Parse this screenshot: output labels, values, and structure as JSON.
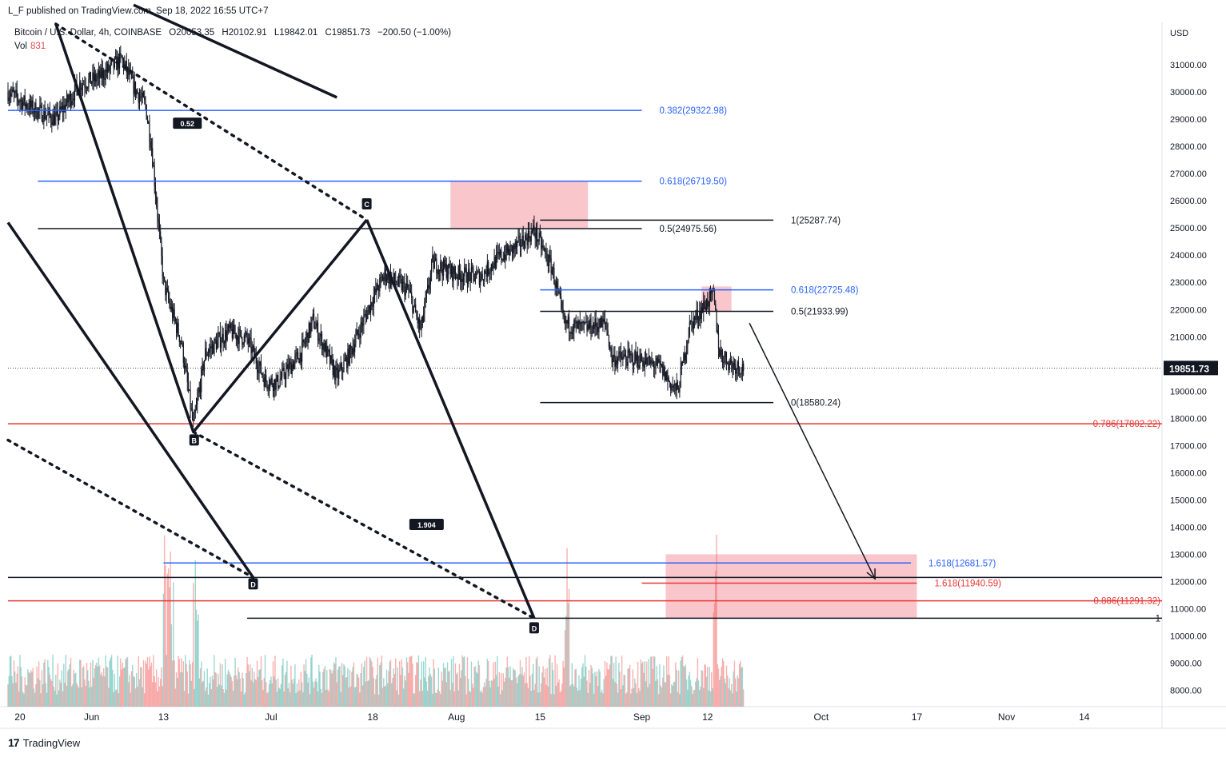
{
  "header": {
    "published": "L_F published on TradingView.com, Sep 18, 2022 16:55 UTC+7",
    "symbol": "Bitcoin / U.S. Dollar, 4h, COINBASE",
    "open": "O20053.35",
    "high": "H20102.91",
    "low": "L19842.01",
    "close": "C19851.73",
    "change": "−200.50 (−1.00%)",
    "vol_label": "Vol",
    "vol_value": "831"
  },
  "footer": {
    "brand": "TradingView",
    "logo": "17"
  },
  "colors": {
    "up": "#26a69a",
    "down": "#ef5350",
    "candle": "#131722",
    "fib_blue": "#2962ff",
    "fib_red": "#e53935",
    "zone": "#f8bcc2",
    "grid": "#f0f3fa"
  },
  "chart_data": {
    "type": "candlestick",
    "symbol": "Bitcoin / U.S. Dollar",
    "interval": "4h",
    "exchange": "COINBASE",
    "currency": "USD",
    "last_price": "19851.73",
    "y_ticks": [
      "8000.00",
      "9000.00",
      "10000.00",
      "11000.00",
      "12000.00",
      "13000.00",
      "14000.00",
      "15000.00",
      "16000.00",
      "17000.00",
      "18000.00",
      "19000.00",
      "20000.00",
      "21000.00",
      "22000.00",
      "23000.00",
      "24000.00",
      "25000.00",
      "26000.00",
      "27000.00",
      "28000.00",
      "29000.00",
      "30000.00",
      "31000.00"
    ],
    "y_tick_values": [
      8000,
      9000,
      10000,
      11000,
      12000,
      13000,
      14000,
      15000,
      16000,
      17000,
      18000,
      19000,
      20000,
      21000,
      22000,
      23000,
      24000,
      25000,
      26000,
      27000,
      28000,
      29000,
      30000,
      31000
    ],
    "ylim": [
      7400,
      32500
    ],
    "x_ticks": [
      {
        "label": "20",
        "date": "2022-05-20"
      },
      {
        "label": "Jun",
        "date": "2022-06-01"
      },
      {
        "label": "13",
        "date": "2022-06-13"
      },
      {
        "label": "Jul",
        "date": "2022-07-01"
      },
      {
        "label": "18",
        "date": "2022-07-18"
      },
      {
        "label": "Aug",
        "date": "2022-08-01"
      },
      {
        "label": "15",
        "date": "2022-08-15"
      },
      {
        "label": "Sep",
        "date": "2022-09-01"
      },
      {
        "label": "12",
        "date": "2022-09-12"
      },
      {
        "label": "Oct",
        "date": "2022-10-01"
      },
      {
        "label": "17",
        "date": "2022-10-17"
      },
      {
        "label": "Nov",
        "date": "2022-11-01"
      },
      {
        "label": "14",
        "date": "2022-11-14"
      }
    ],
    "xlim": [
      "2022-05-18",
      "2022-11-27"
    ],
    "price_path": [
      [
        "2022-05-18",
        30000
      ],
      [
        "2022-05-22",
        29400
      ],
      [
        "2022-05-26",
        29000
      ],
      [
        "2022-05-30",
        30300
      ],
      [
        "2022-06-02",
        30500
      ],
      [
        "2022-06-06",
        31200
      ],
      [
        "2022-06-08",
        30200
      ],
      [
        "2022-06-10",
        29500
      ],
      [
        "2022-06-11",
        28000
      ],
      [
        "2022-06-13",
        23000
      ],
      [
        "2022-06-14",
        22200
      ],
      [
        "2022-06-16",
        20800
      ],
      [
        "2022-06-18",
        17700
      ],
      [
        "2022-06-20",
        20400
      ],
      [
        "2022-06-24",
        21200
      ],
      [
        "2022-06-27",
        20900
      ],
      [
        "2022-06-30",
        19400
      ],
      [
        "2022-07-02",
        19300
      ],
      [
        "2022-07-06",
        20400
      ],
      [
        "2022-07-08",
        21600
      ],
      [
        "2022-07-12",
        19500
      ],
      [
        "2022-07-14",
        20300
      ],
      [
        "2022-07-18",
        22400
      ],
      [
        "2022-07-20",
        23300
      ],
      [
        "2022-07-24",
        22700
      ],
      [
        "2022-07-26",
        21200
      ],
      [
        "2022-07-28",
        23700
      ],
      [
        "2022-08-01",
        23300
      ],
      [
        "2022-08-05",
        23200
      ],
      [
        "2022-08-08",
        23900
      ],
      [
        "2022-08-11",
        24300
      ],
      [
        "2022-08-14",
        24900
      ],
      [
        "2022-08-17",
        23500
      ],
      [
        "2022-08-19",
        21500
      ],
      [
        "2022-08-22",
        21300
      ],
      [
        "2022-08-26",
        21500
      ],
      [
        "2022-08-27",
        20200
      ],
      [
        "2022-08-31",
        20200
      ],
      [
        "2022-09-04",
        19900
      ],
      [
        "2022-09-06",
        19200
      ],
      [
        "2022-09-07",
        19000
      ],
      [
        "2022-09-09",
        21400
      ],
      [
        "2022-09-12",
        22300
      ],
      [
        "2022-09-13",
        22500
      ],
      [
        "2022-09-14",
        20400
      ],
      [
        "2022-09-16",
        20000
      ],
      [
        "2022-09-18",
        19851.73
      ]
    ],
    "fib_levels": [
      {
        "label": "0.382(29322.98)",
        "value": 29322.98,
        "color": "blue",
        "from": "2022-05-18",
        "to": "2022-09-01"
      },
      {
        "label": "0.618(26719.50)",
        "value": 26719.5,
        "color": "blue",
        "from": "2022-05-23",
        "to": "2022-09-01"
      },
      {
        "label": "0.5(24975.56)",
        "value": 24975.56,
        "color": "black",
        "from": "2022-05-23",
        "to": "2022-09-01"
      },
      {
        "label": "1(25287.74)",
        "value": 25287.74,
        "color": "black",
        "from": "2022-08-15",
        "to": "2022-09-23"
      },
      {
        "label": "0.618(22725.48)",
        "value": 22725.48,
        "color": "blue",
        "from": "2022-08-15",
        "to": "2022-09-23"
      },
      {
        "label": "0.5(21933.99)",
        "value": 21933.99,
        "color": "black",
        "from": "2022-08-15",
        "to": "2022-09-23"
      },
      {
        "label": "0(18580.24)",
        "value": 18580.24,
        "color": "black",
        "from": "2022-08-15",
        "to": "2022-09-23"
      },
      {
        "label": "0.786(17802.22)",
        "value": 17802.22,
        "color": "red",
        "from": "2022-05-18",
        "to": "2022-11-27"
      },
      {
        "label": "1.618(12681.57)",
        "value": 12681.57,
        "color": "blue",
        "from": "2022-06-13",
        "to": "2022-10-16"
      },
      {
        "label": "1.618(11940.59)",
        "value": 11940.59,
        "color": "red",
        "from": "2022-09-01",
        "to": "2022-10-17"
      },
      {
        "label": "0.886(11291.32)",
        "value": 11291.32,
        "color": "red",
        "from": "2022-05-18",
        "to": "2022-11-27"
      },
      {
        "label": "",
        "value": 12150,
        "color": "black",
        "from": "2022-05-18",
        "to": "2022-11-27"
      },
      {
        "label": "1",
        "value": 10650,
        "color": "black",
        "from": "2022-06-27",
        "to": "2022-11-27"
      }
    ],
    "zones": [
      {
        "from": "2022-07-31",
        "to": "2022-08-23",
        "low": 25000,
        "high": 26700
      },
      {
        "from": "2022-09-11",
        "to": "2022-09-16",
        "low": 21950,
        "high": 22850
      },
      {
        "from": "2022-09-05",
        "to": "2022-10-17",
        "low": 10650,
        "high": 13000
      }
    ],
    "pattern_points": [
      {
        "label": "",
        "date": "2022-05-26",
        "value": 32500
      },
      {
        "label": "B",
        "date": "2022-06-18",
        "value": 17500
      },
      {
        "label": "C",
        "date": "2022-07-17",
        "value": 25300
      },
      {
        "label": "D",
        "date": "2022-08-14",
        "value": 10650
      },
      {
        "label": "D",
        "date": "2022-06-28",
        "value": 12150
      }
    ],
    "annotations": [
      {
        "label": "0.52",
        "date": "2022-06-17",
        "value": 28850
      },
      {
        "label": "1.904",
        "date": "2022-07-27",
        "value": 14100
      }
    ],
    "projection_arrow": {
      "from": {
        "date": "2022-09-19",
        "value": 21500
      },
      "to": {
        "date": "2022-10-10",
        "value": 12100
      }
    }
  }
}
